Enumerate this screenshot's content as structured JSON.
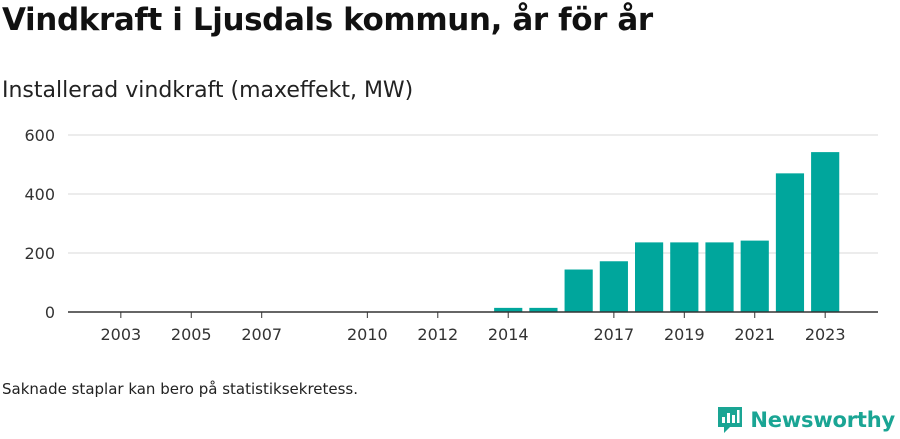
{
  "header": {
    "title": "Vindkraft i Ljusdals kommun, år för år",
    "subtitle": "Installerad vindkraft (maxeffekt, MW)"
  },
  "footer": {
    "note": "Saknade staplar kan bero på statistiksekretess.",
    "brand": "Newsworthy"
  },
  "colors": {
    "bar": "#00a69c",
    "grid": "#d9d9d9",
    "axis": "#333333",
    "brand": "#1aa594"
  },
  "chart_data": {
    "type": "bar",
    "x": [
      2014,
      2015,
      2016,
      2017,
      2018,
      2019,
      2020,
      2021,
      2022,
      2023
    ],
    "values": [
      14,
      14,
      144,
      172,
      236,
      236,
      236,
      242,
      470,
      542
    ],
    "xlim": [
      2001.5,
      2024.5
    ],
    "ylim": [
      0,
      600
    ],
    "yticks": [
      0,
      200,
      400,
      600
    ],
    "xticks": [
      2003,
      2005,
      2007,
      2010,
      2012,
      2014,
      2017,
      2019,
      2021,
      2023
    ],
    "grid": true,
    "legend": "none"
  }
}
